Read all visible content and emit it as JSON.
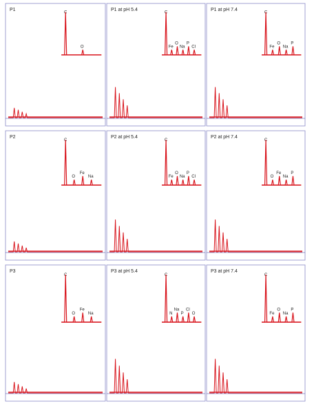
{
  "panels": [
    {
      "title": "P1",
      "labels": [
        "C",
        "O"
      ]
    },
    {
      "title": "P1 at pH 5.4",
      "labels": [
        "C",
        "Fe",
        "O",
        "Na",
        "P",
        "Cl"
      ]
    },
    {
      "title": "P1 at pH 7.4",
      "labels": [
        "C",
        "Fe",
        "O",
        "Na",
        "P"
      ]
    },
    {
      "title": "P2",
      "labels": [
        "C",
        "O",
        "Fe",
        "Na"
      ]
    },
    {
      "title": "P2 at pH 5.4",
      "labels": [
        "C",
        "Fe",
        "O",
        "Na",
        "P",
        "Cl"
      ]
    },
    {
      "title": "P2 at pH 7.4",
      "labels": [
        "C",
        "O",
        "Fe",
        "Na",
        "P"
      ]
    },
    {
      "title": "P3",
      "labels": [
        "C",
        "O",
        "Fe",
        "Na"
      ]
    },
    {
      "title": "P3 at pH 5.4",
      "labels": [
        "C",
        "N",
        "Na",
        "P",
        "Cl",
        "O"
      ]
    },
    {
      "title": "P3 at pH 7.4",
      "labels": [
        "C",
        "Fe",
        "O",
        "Na",
        "P"
      ]
    }
  ]
}
